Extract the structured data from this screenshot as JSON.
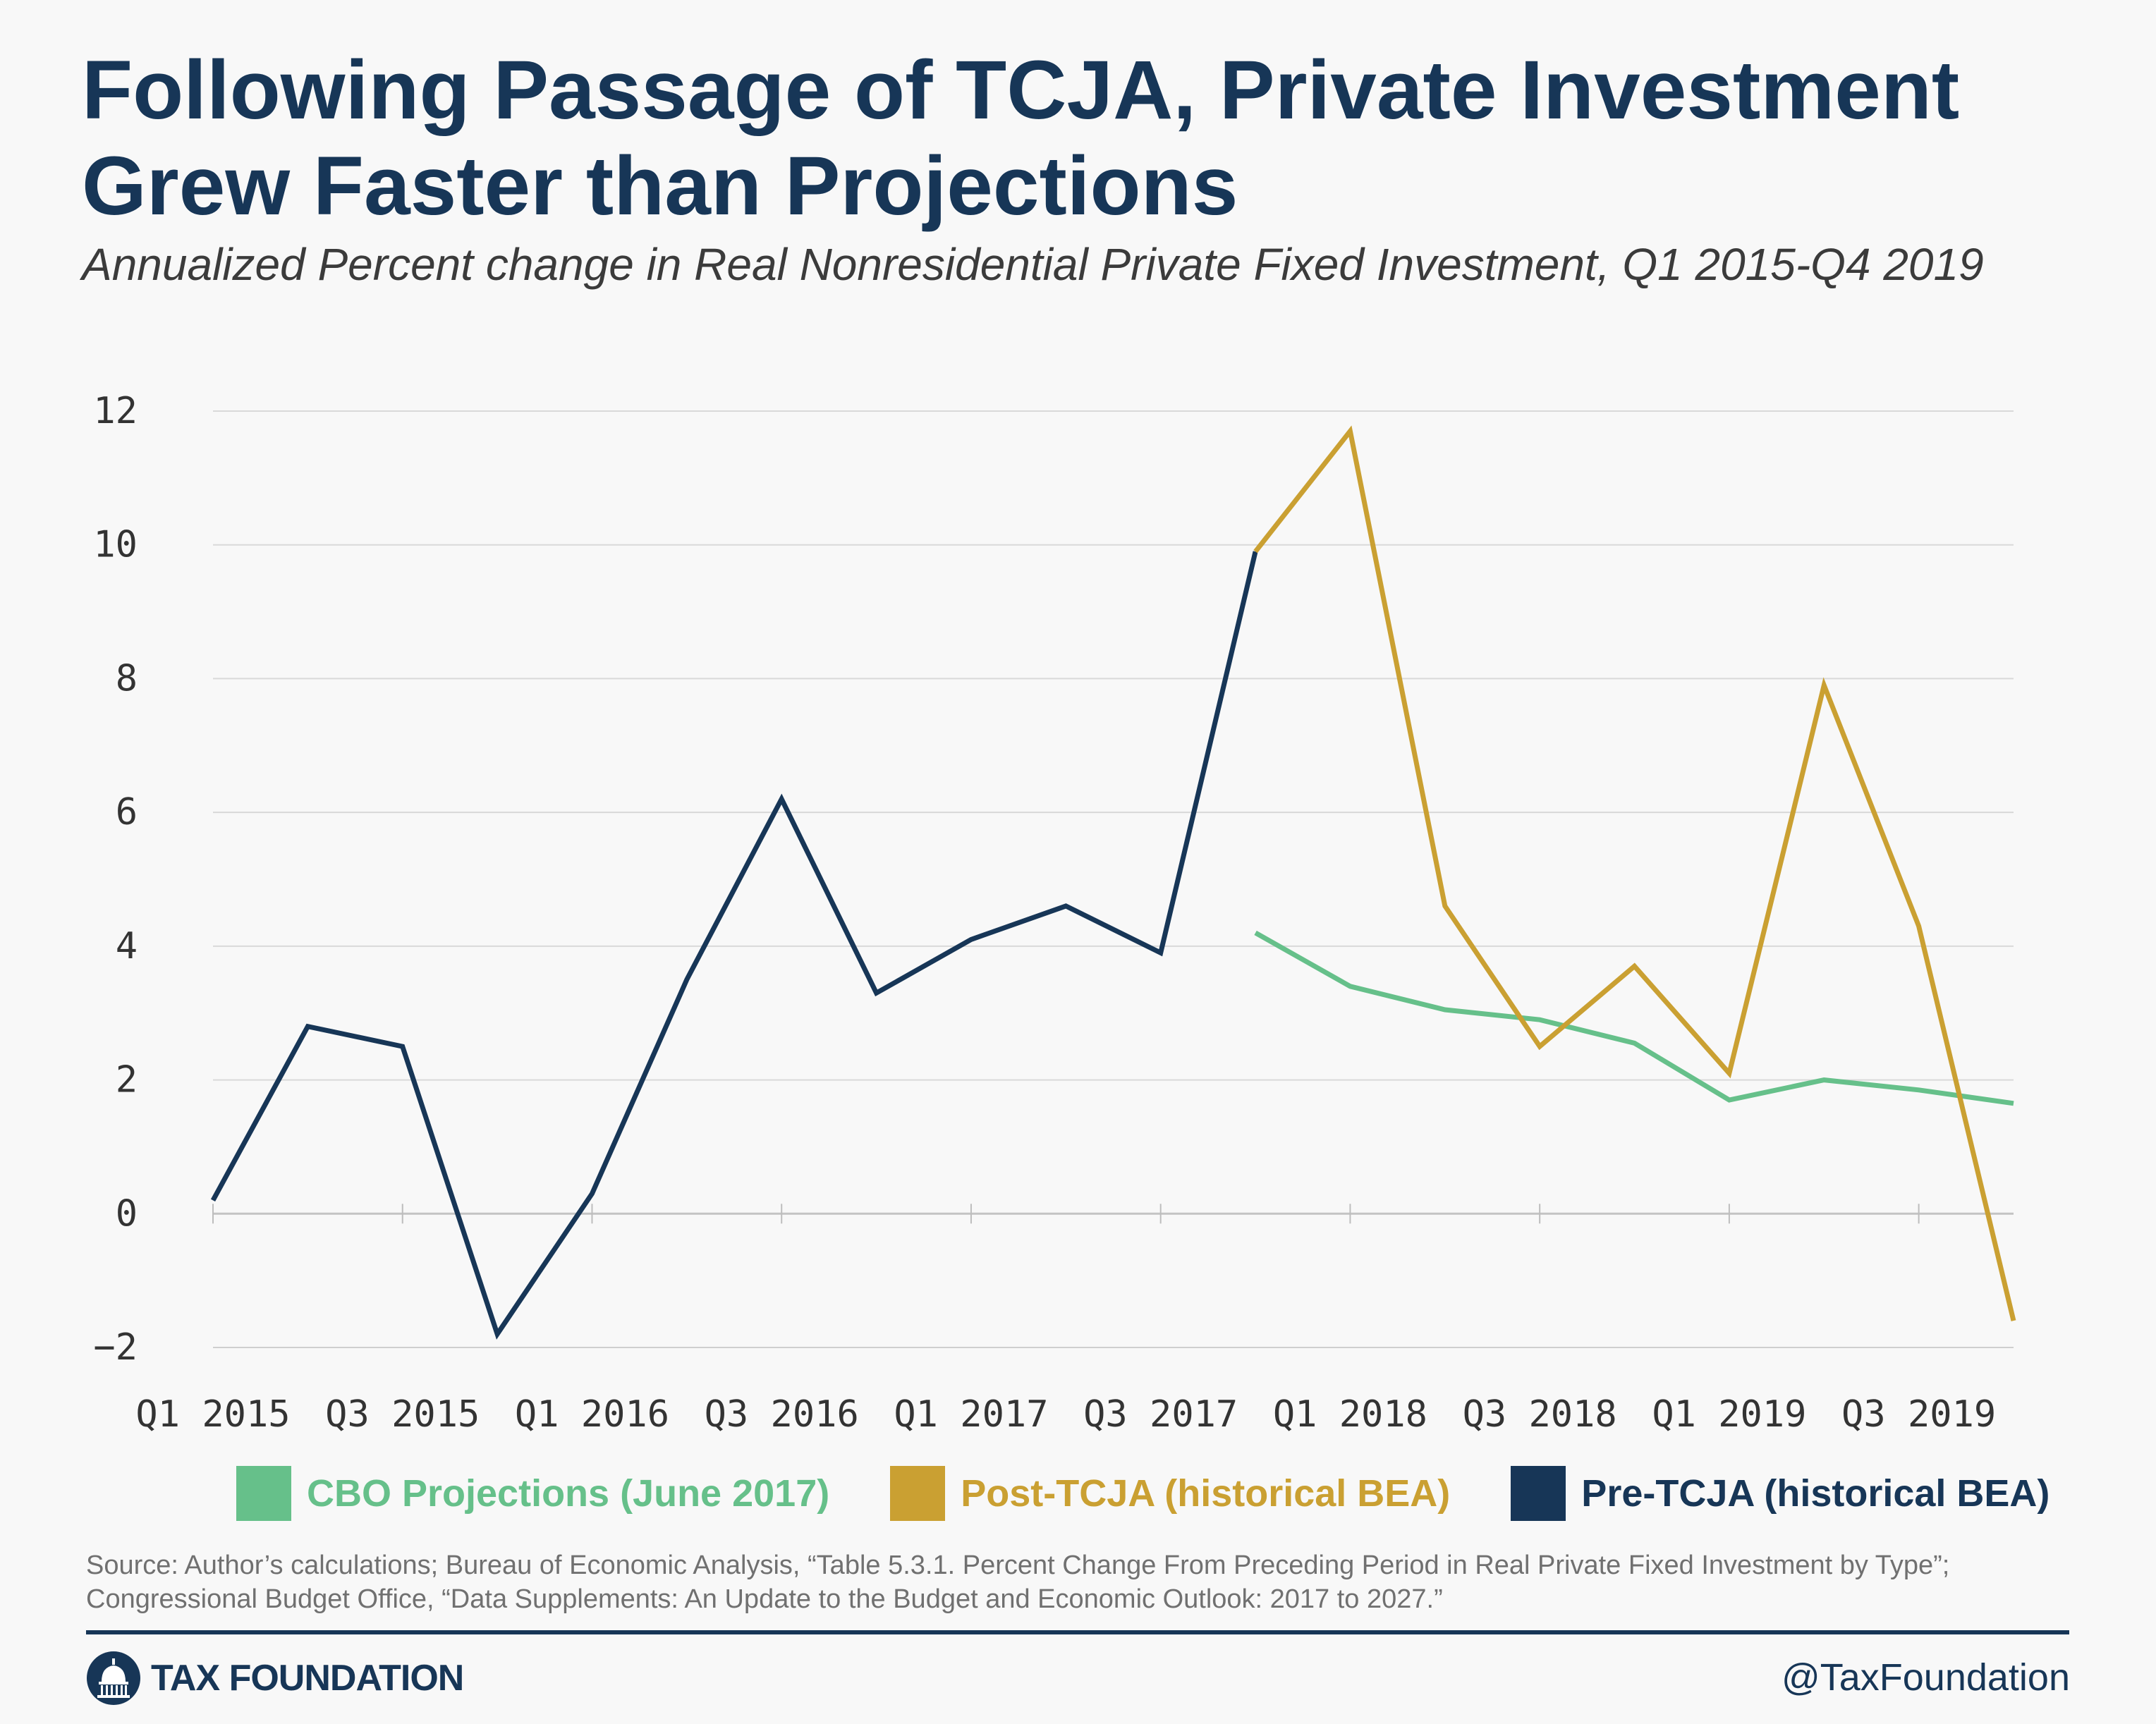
{
  "header": {
    "title": "Following Passage of TCJA, Private Investment Grew Faster than Projections",
    "subtitle": "Annualized Percent change in Real Nonresidential Private Fixed Investment, Q1 2015-Q4 2019"
  },
  "chart_data": {
    "type": "line",
    "title": "Following Passage of TCJA, Private Investment Grew Faster than Projections",
    "subtitle": "Annualized Percent change in Real Nonresidential Private Fixed Investment, Q1 2015-Q4 2019",
    "x": [
      "Q1 2015",
      "Q2 2015",
      "Q3 2015",
      "Q4 2015",
      "Q1 2016",
      "Q2 2016",
      "Q3 2016",
      "Q4 2016",
      "Q1 2017",
      "Q2 2017",
      "Q3 2017",
      "Q4 2017",
      "Q1 2018",
      "Q2 2018",
      "Q3 2018",
      "Q4 2018",
      "Q1 2019",
      "Q2 2019",
      "Q3 2019",
      "Q4 2019"
    ],
    "x_tick_labels": [
      "Q1 2015",
      "Q3 2015",
      "Q1 2016",
      "Q3 2016",
      "Q1 2017",
      "Q3 2017",
      "Q1 2018",
      "Q3 2018",
      "Q1 2019",
      "Q3 2019"
    ],
    "ylim": [
      -2,
      12
    ],
    "y_ticks": [
      -2,
      0,
      2,
      4,
      6,
      8,
      10,
      12
    ],
    "grid": true,
    "legend_position": "bottom",
    "series": [
      {
        "name": "CBO Projections (June 2017)",
        "color": "#66c08a",
        "values": [
          null,
          null,
          null,
          null,
          null,
          null,
          null,
          null,
          null,
          null,
          null,
          4.2,
          3.4,
          3.05,
          2.9,
          2.55,
          1.7,
          2.0,
          1.85,
          1.65
        ]
      },
      {
        "name": "Post-TCJA (historical BEA)",
        "color": "#caa032",
        "values": [
          null,
          null,
          null,
          null,
          null,
          null,
          null,
          null,
          null,
          null,
          null,
          9.9,
          11.7,
          4.6,
          2.5,
          3.7,
          2.1,
          7.9,
          4.3,
          -1.6
        ]
      },
      {
        "name": "Pre-TCJA (historical BEA)",
        "color": "#173657",
        "values": [
          0.2,
          2.8,
          2.5,
          -1.8,
          0.3,
          3.5,
          6.2,
          3.3,
          4.1,
          4.6,
          3.9,
          9.9,
          null,
          null,
          null,
          null,
          null,
          null,
          null,
          null
        ]
      }
    ]
  },
  "legend": {
    "items": [
      {
        "label": "CBO Projections (June 2017)",
        "color": "#66c08a"
      },
      {
        "label": "Post-TCJA (historical BEA)",
        "color": "#caa032"
      },
      {
        "label": "Pre-TCJA (historical BEA)",
        "color": "#173657"
      }
    ]
  },
  "source": "Source: Author’s calculations; Bureau of Economic Analysis, “Table 5.3.1. Percent Change From Preceding Period in Real Private Fixed Investment by Type”; Congressional Budget Office, “Data Supplements: An Update to the Budget and Economic Outlook: 2017 to 2027.”",
  "footer": {
    "brand": "TAX FOUNDATION",
    "handle": "@TaxFoundation",
    "logo_icon": "capitol-dome-icon"
  }
}
